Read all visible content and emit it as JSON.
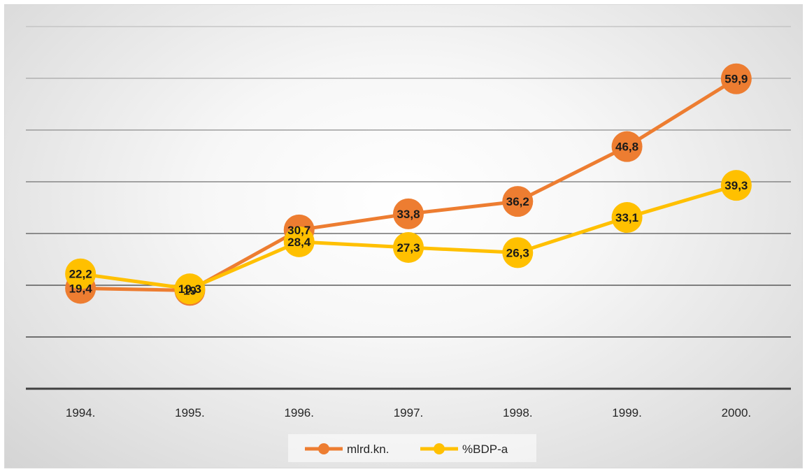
{
  "chart_data": {
    "type": "line",
    "categories": [
      "1994.",
      "1995.",
      "1996.",
      "1997.",
      "1998.",
      "1999.",
      "2000."
    ],
    "series": [
      {
        "name": "mlrd.kn.",
        "values": [
          19.4,
          19.0,
          30.7,
          33.8,
          36.2,
          46.8,
          59.9
        ],
        "labels": [
          "19,4",
          "19",
          "30,7",
          "33,8",
          "36,2",
          "46,8",
          "59,9"
        ],
        "color": "#ED7D31"
      },
      {
        "name": "%BDP-a",
        "values": [
          22.2,
          19.3,
          28.4,
          27.3,
          26.3,
          33.1,
          39.3
        ],
        "labels": [
          "22,2",
          "19,3",
          "28,4",
          "27,3",
          "26,3",
          "33,1",
          "39,3"
        ],
        "color": "#FFC000"
      }
    ],
    "ylim": [
      0,
      70
    ],
    "grid": true,
    "legend_position": "bottom"
  }
}
